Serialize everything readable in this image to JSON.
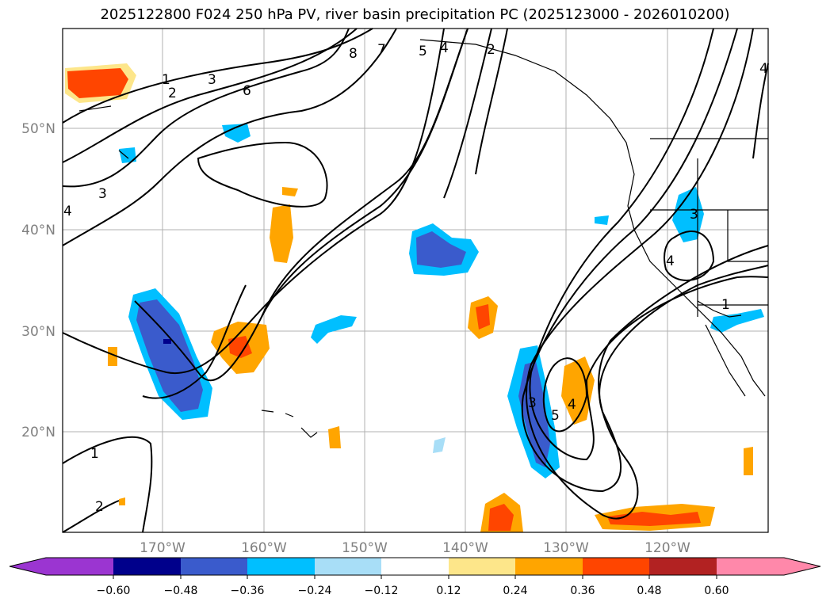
{
  "title": "2025122800 F024 250 hPa PV, river basin precipitation PC (2025123000 - 2026010200)",
  "map": {
    "lat_labels": [
      "50°N",
      "40°N",
      "30°N",
      "20°N"
    ],
    "lon_labels": [
      "170°W",
      "160°W",
      "150°W",
      "140°W",
      "130°W",
      "120°W"
    ],
    "contour_labels": [
      "1",
      "2",
      "3",
      "6",
      "8",
      "7",
      "5",
      "4",
      "2",
      "3",
      "4",
      "1",
      "2",
      "3",
      "4",
      "3",
      "5",
      "4",
      "4",
      "1"
    ]
  },
  "colorbar": {
    "ticks": [
      "−0.60",
      "−0.48",
      "−0.36",
      "−0.24",
      "−0.12",
      "0.12",
      "0.24",
      "0.36",
      "0.48",
      "0.60"
    ],
    "colors": [
      "#9b35d1",
      "#00008b",
      "#3a5bcc",
      "#00bfff",
      "#a8def7",
      "#ffffff",
      "#fde68a",
      "#ffa500",
      "#ff4500",
      "#b22222",
      "#ff88aa"
    ]
  }
}
